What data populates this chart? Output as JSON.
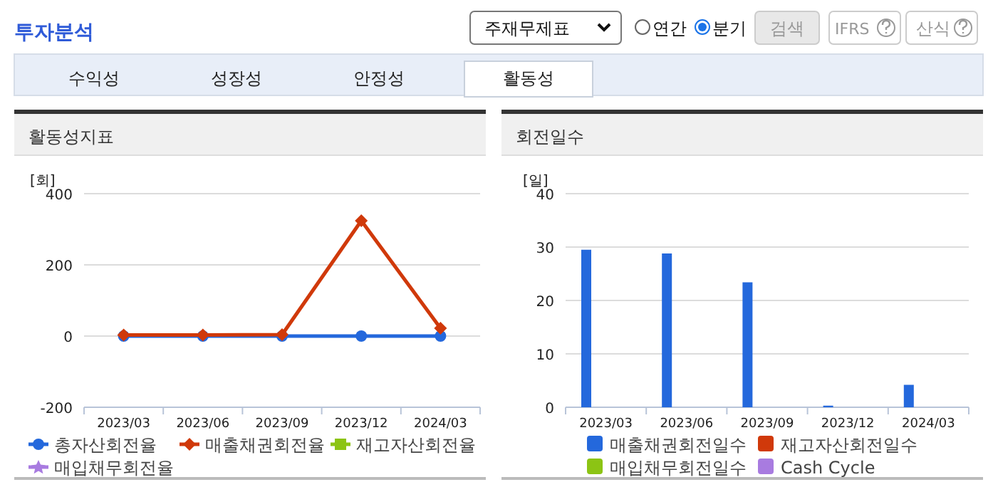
{
  "chart_data": [
    {
      "type": "other",
      "title": "투자분석",
      "annotations": [
        "주재무제표",
        "연간",
        "분기",
        "검색",
        "IFRS",
        "산식",
        "수익성",
        "성장성",
        "안정성",
        "활동성"
      ]
    },
    {
      "type": "line",
      "title": "활동성지표",
      "ylabel": "[회]",
      "categories": [
        "2023/03",
        "2023/06",
        "2023/09",
        "2023/12",
        "2024/03"
      ],
      "ylim": [
        -200,
        400
      ],
      "yticks": [
        -200,
        0,
        200,
        400
      ],
      "grid": "y",
      "legend": "bottom",
      "series": [
        {
          "name": "총자산회전율",
          "color": "#2468dc",
          "marker": "circle",
          "values": [
            0,
            0,
            0,
            0,
            0
          ]
        },
        {
          "name": "매출채권회전율",
          "color": "#d0390a",
          "marker": "diamond",
          "values": [
            3,
            3,
            4,
            324,
            22
          ]
        },
        {
          "name": "재고자산회전율",
          "color": "#8cc414",
          "marker": "square",
          "values": [
            null,
            null,
            null,
            null,
            null
          ]
        },
        {
          "name": "매입채무회전율",
          "color": "#a87be0",
          "marker": "star",
          "values": [
            null,
            null,
            null,
            null,
            null
          ]
        }
      ]
    },
    {
      "type": "bar",
      "title": "회전일수",
      "ylabel": "[일]",
      "categories": [
        "2023/03",
        "2023/06",
        "2023/09",
        "2023/12",
        "2024/03"
      ],
      "ylim": [
        0,
        40
      ],
      "yticks": [
        0,
        10,
        20,
        30,
        40
      ],
      "grid": "y",
      "legend": "bottom",
      "series": [
        {
          "name": "매출채권회전일수",
          "color": "#2468dc",
          "values": [
            29.5,
            28.8,
            23.4,
            0.3,
            4.2
          ]
        },
        {
          "name": "재고자산회전일수",
          "color": "#d0390a",
          "values": [
            null,
            null,
            null,
            null,
            null
          ]
        },
        {
          "name": "매입채무회전일수",
          "color": "#8cc414",
          "values": [
            null,
            null,
            null,
            null,
            null
          ]
        },
        {
          "name": "Cash Cycle",
          "color": "#a87be0",
          "values": [
            null,
            null,
            null,
            null,
            null
          ]
        }
      ]
    }
  ]
}
